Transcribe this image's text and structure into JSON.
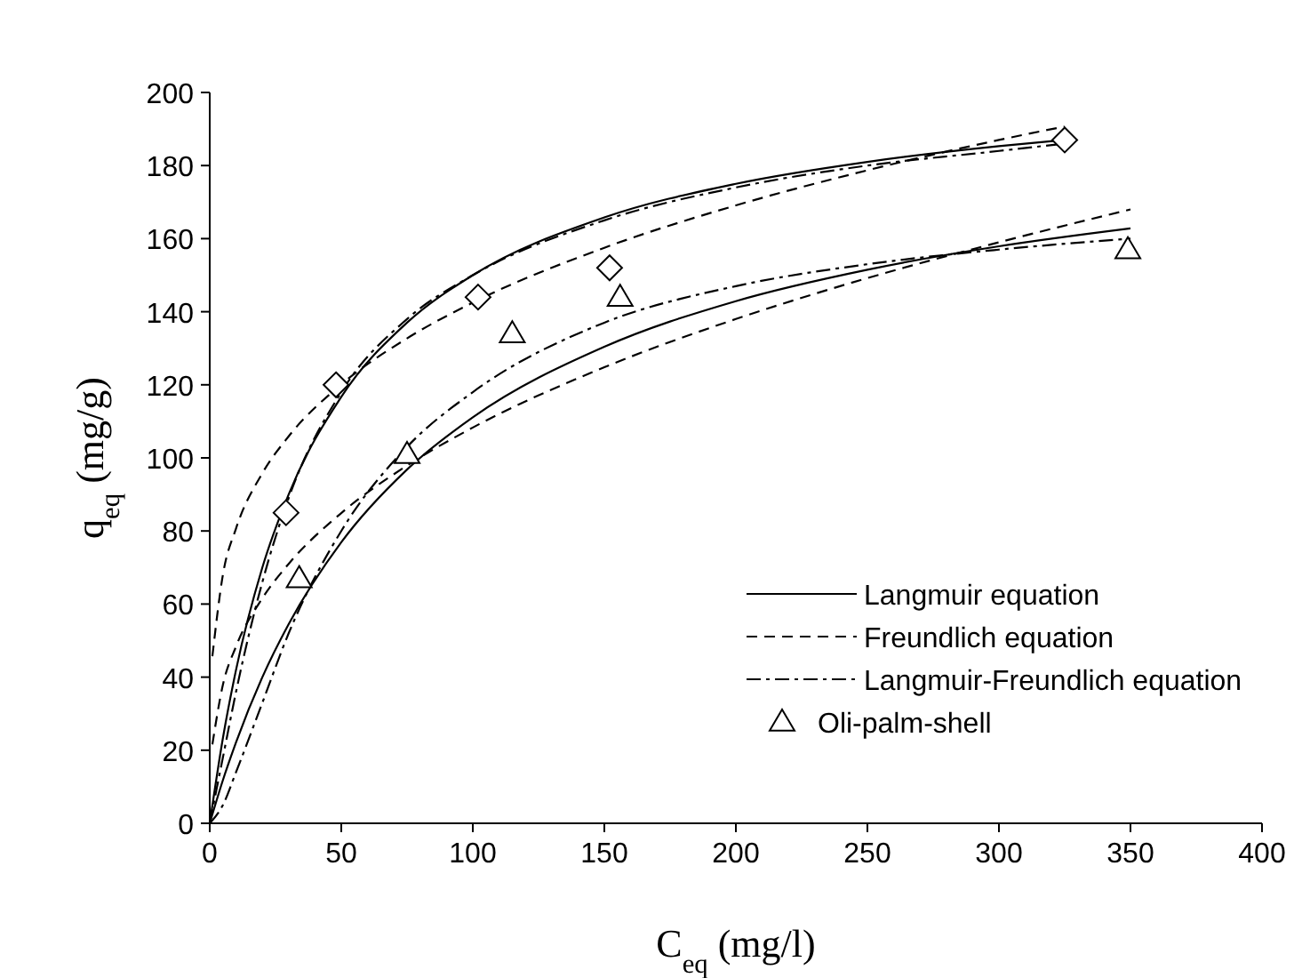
{
  "chart_data": {
    "type": "line",
    "xlabel": "C$_{eq}$ (mg/l)",
    "ylabel": "q$_{eq}$ (mg/g)",
    "xlim": [
      0,
      400
    ],
    "xticks": [
      0,
      50,
      100,
      150,
      200,
      250,
      300,
      350,
      400
    ],
    "ylim": [
      0,
      200
    ],
    "yticks": [
      0,
      20,
      40,
      60,
      80,
      100,
      120,
      140,
      160,
      180,
      200
    ],
    "grid": false,
    "legend": "bottom right",
    "series": [
      {
        "name": "Langmuir equation",
        "line_style": "solid",
        "color": "#000000",
        "x": [
          0,
          5,
          10,
          20,
          30,
          50,
          75,
          100,
          150,
          200,
          250,
          300,
          350
        ],
        "values": [
          0,
          11.8,
          22.2,
          40,
          54.5,
          76.9,
          96.8,
          111.1,
          130.4,
          142.9,
          151.5,
          157.9,
          162.8
        ]
      },
      {
        "name": "Freundlich equation",
        "line_style": "dashed",
        "color": "#000000",
        "x": [
          1,
          5,
          10,
          20,
          30,
          50,
          75,
          100,
          150,
          200,
          250,
          300,
          350
        ],
        "values": [
          21.6,
          37.9,
          48.4,
          61.6,
          71,
          84.9,
          97.9,
          108.3,
          124.8,
          138,
          149.2,
          159,
          168
        ]
      },
      {
        "name": "Langmuir-Freundlich equation",
        "line_style": "dashdot",
        "color": "#000000",
        "x": [
          0,
          5,
          10,
          20,
          30,
          50,
          75,
          100,
          150,
          200,
          250,
          300,
          350
        ],
        "values": [
          0,
          5,
          14,
          33,
          52,
          80,
          103,
          118,
          137,
          147,
          153,
          157,
          160
        ]
      },
      {
        "type": "line",
        "line_style": "solid",
        "color": "#000000",
        "x": [
          0,
          5,
          10,
          20,
          30,
          50,
          75,
          100,
          150,
          200,
          250,
          300,
          325
        ],
        "values": [
          0,
          23.3,
          42,
          70,
          90,
          116.7,
          137,
          150,
          165.8,
          175,
          181,
          185.3,
          187
        ]
      },
      {
        "type": "line",
        "line_style": "dashed",
        "color": "#000000",
        "x": [
          1,
          5,
          10,
          20,
          30,
          50,
          75,
          100,
          150,
          200,
          250,
          300,
          325
        ],
        "values": [
          45.7,
          68,
          80.7,
          95.8,
          105.9,
          120.1,
          132.7,
          142.5,
          157.5,
          169.1,
          178.7,
          187,
          190.7
        ]
      },
      {
        "type": "line",
        "line_style": "dashdot",
        "color": "#000000",
        "x": [
          0,
          5,
          10,
          20,
          30,
          50,
          75,
          100,
          150,
          200,
          250,
          300,
          325
        ],
        "values": [
          0,
          18,
          36,
          66,
          89,
          118,
          138,
          150,
          165,
          174,
          180,
          184,
          186
        ]
      },
      {
        "name": "Oli-palm-shell",
        "type": "scatter",
        "marker": "triangle",
        "color": "#000000",
        "x": [
          34,
          75,
          115,
          156,
          349
        ],
        "values": [
          67,
          101,
          134,
          144,
          157
        ]
      },
      {
        "type": "scatter",
        "marker": "diamond",
        "color": "#000000",
        "x": [
          29,
          48,
          102,
          152,
          325
        ],
        "values": [
          85,
          120,
          144,
          152,
          187
        ]
      }
    ]
  }
}
